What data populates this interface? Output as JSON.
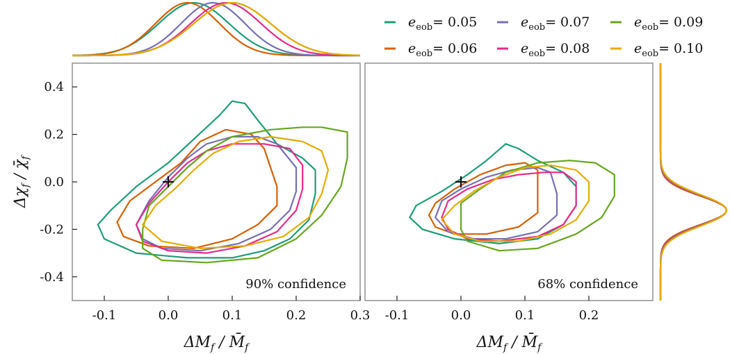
{
  "chart_data": {
    "type": "contour",
    "description_units": "data units",
    "series": [
      {
        "name": "e_eob = 0.05",
        "value": 0.05,
        "color": "#1b9e77"
      },
      {
        "name": "e_eob = 0.06",
        "value": 0.06,
        "color": "#d95f02"
      },
      {
        "name": "e_eob = 0.07",
        "value": 0.07,
        "color": "#7570b3"
      },
      {
        "name": "e_eob = 0.08",
        "value": 0.08,
        "color": "#e7298a"
      },
      {
        "name": "e_eob = 0.09",
        "value": 0.09,
        "color": "#66a61e"
      },
      {
        "name": "e_eob = 0.10",
        "value": 0.1,
        "color": "#e6ab02"
      }
    ],
    "legend": {
      "placement": "top-right",
      "symbol": "e",
      "subscript": "eob",
      "entries": [
        "= 0.05",
        "= 0.06",
        "= 0.07",
        "= 0.08",
        "= 0.09",
        "= 0.10"
      ]
    },
    "panels": [
      {
        "name": "90-confidence",
        "annotation": "90% confidence",
        "xlim": [
          -0.15,
          0.3
        ],
        "ylim": [
          -0.5,
          0.5
        ],
        "xticks": [
          -0.1,
          0.0,
          0.1,
          0.2,
          0.3
        ],
        "xtick_labels": [
          "-0.1",
          "0.0",
          "0.1",
          "0.2",
          "0.3"
        ],
        "yticks": [
          -0.4,
          -0.2,
          0.0,
          0.2,
          0.4
        ],
        "ytick_labels": [
          "-0.4",
          "-0.2",
          "0.0",
          "0.2",
          "0.4"
        ],
        "marker": [
          0.0,
          0.0
        ],
        "contours": [
          [
            [
              -0.11,
              -0.18
            ],
            [
              -0.09,
              -0.12
            ],
            [
              -0.05,
              -0.02
            ],
            [
              0.0,
              0.08
            ],
            [
              0.04,
              0.18
            ],
            [
              0.08,
              0.28
            ],
            [
              0.1,
              0.34
            ],
            [
              0.12,
              0.33
            ],
            [
              0.14,
              0.26
            ],
            [
              0.17,
              0.16
            ],
            [
              0.21,
              0.1
            ],
            [
              0.23,
              0.05
            ],
            [
              0.23,
              -0.05
            ],
            [
              0.22,
              -0.16
            ],
            [
              0.19,
              -0.24
            ],
            [
              0.15,
              -0.29
            ],
            [
              0.1,
              -0.32
            ],
            [
              0.03,
              -0.32
            ],
            [
              -0.05,
              -0.3
            ],
            [
              -0.1,
              -0.24
            ],
            [
              -0.11,
              -0.18
            ]
          ],
          [
            [
              -0.08,
              -0.17
            ],
            [
              -0.06,
              -0.08
            ],
            [
              -0.02,
              0.0
            ],
            [
              0.02,
              0.08
            ],
            [
              0.05,
              0.17
            ],
            [
              0.09,
              0.22
            ],
            [
              0.13,
              0.2
            ],
            [
              0.15,
              0.14
            ],
            [
              0.16,
              0.06
            ],
            [
              0.17,
              -0.02
            ],
            [
              0.17,
              -0.1
            ],
            [
              0.14,
              -0.18
            ],
            [
              0.1,
              -0.24
            ],
            [
              0.04,
              -0.28
            ],
            [
              -0.03,
              -0.27
            ],
            [
              -0.07,
              -0.23
            ],
            [
              -0.08,
              -0.17
            ]
          ],
          [
            [
              -0.05,
              -0.18
            ],
            [
              -0.03,
              -0.08
            ],
            [
              0.0,
              0.02
            ],
            [
              0.03,
              0.1
            ],
            [
              0.06,
              0.16
            ],
            [
              0.1,
              0.19
            ],
            [
              0.14,
              0.19
            ],
            [
              0.17,
              0.16
            ],
            [
              0.2,
              0.06
            ],
            [
              0.2,
              -0.04
            ],
            [
              0.19,
              -0.12
            ],
            [
              0.16,
              -0.2
            ],
            [
              0.11,
              -0.26
            ],
            [
              0.05,
              -0.29
            ],
            [
              -0.01,
              -0.28
            ],
            [
              -0.04,
              -0.24
            ],
            [
              -0.05,
              -0.18
            ]
          ],
          [
            [
              -0.05,
              -0.18
            ],
            [
              -0.03,
              -0.09
            ],
            [
              0.0,
              0.0
            ],
            [
              0.03,
              0.08
            ],
            [
              0.06,
              0.13
            ],
            [
              0.1,
              0.16
            ],
            [
              0.15,
              0.16
            ],
            [
              0.19,
              0.14
            ],
            [
              0.21,
              0.07
            ],
            [
              0.21,
              -0.03
            ],
            [
              0.2,
              -0.12
            ],
            [
              0.17,
              -0.21
            ],
            [
              0.12,
              -0.27
            ],
            [
              0.06,
              -0.3
            ],
            [
              0.0,
              -0.29
            ],
            [
              -0.04,
              -0.25
            ],
            [
              -0.05,
              -0.18
            ]
          ],
          [
            [
              -0.04,
              -0.2
            ],
            [
              -0.03,
              -0.1
            ],
            [
              0.0,
              -0.02
            ],
            [
              0.03,
              0.06
            ],
            [
              0.06,
              0.13
            ],
            [
              0.1,
              0.19
            ],
            [
              0.16,
              0.22
            ],
            [
              0.21,
              0.23
            ],
            [
              0.24,
              0.23
            ],
            [
              0.28,
              0.21
            ],
            [
              0.28,
              0.1
            ],
            [
              0.27,
              -0.02
            ],
            [
              0.24,
              -0.14
            ],
            [
              0.2,
              -0.24
            ],
            [
              0.14,
              -0.32
            ],
            [
              0.06,
              -0.34
            ],
            [
              -0.01,
              -0.33
            ],
            [
              -0.04,
              -0.28
            ],
            [
              -0.04,
              -0.2
            ]
          ],
          [
            [
              -0.04,
              -0.18
            ],
            [
              -0.02,
              -0.1
            ],
            [
              0.01,
              -0.03
            ],
            [
              0.04,
              0.05
            ],
            [
              0.07,
              0.12
            ],
            [
              0.11,
              0.17
            ],
            [
              0.16,
              0.19
            ],
            [
              0.21,
              0.17
            ],
            [
              0.24,
              0.13
            ],
            [
              0.25,
              0.05
            ],
            [
              0.24,
              -0.05
            ],
            [
              0.22,
              -0.15
            ],
            [
              0.18,
              -0.23
            ],
            [
              0.12,
              -0.27
            ],
            [
              0.05,
              -0.28
            ],
            [
              -0.01,
              -0.25
            ],
            [
              -0.04,
              -0.18
            ]
          ]
        ]
      },
      {
        "name": "68-confidence",
        "annotation": "68% confidence",
        "xlim": [
          -0.15,
          0.3
        ],
        "ylim": [
          -0.5,
          0.5
        ],
        "xticks": [
          -0.1,
          0.0,
          0.1,
          0.2
        ],
        "xtick_labels": [
          "-0.1",
          "0.0",
          "0.1",
          "0.2"
        ],
        "yticks": [],
        "ytick_labels": [],
        "marker": [
          0.0,
          0.0
        ],
        "contours": [
          [
            [
              -0.08,
              -0.15
            ],
            [
              -0.07,
              -0.1
            ],
            [
              -0.03,
              -0.04
            ],
            [
              0.01,
              0.03
            ],
            [
              0.04,
              0.09
            ],
            [
              0.07,
              0.16
            ],
            [
              0.09,
              0.14
            ],
            [
              0.12,
              0.09
            ],
            [
              0.16,
              0.04
            ],
            [
              0.18,
              -0.02
            ],
            [
              0.18,
              -0.1
            ],
            [
              0.16,
              -0.18
            ],
            [
              0.12,
              -0.24
            ],
            [
              0.06,
              -0.26
            ],
            [
              -0.01,
              -0.24
            ],
            [
              -0.06,
              -0.2
            ],
            [
              -0.08,
              -0.15
            ]
          ],
          [
            [
              -0.05,
              -0.14
            ],
            [
              -0.04,
              -0.09
            ],
            [
              -0.01,
              -0.03
            ],
            [
              0.03,
              0.03
            ],
            [
              0.07,
              0.07
            ],
            [
              0.1,
              0.08
            ],
            [
              0.12,
              0.05
            ],
            [
              0.12,
              -0.05
            ],
            [
              0.12,
              -0.13
            ],
            [
              0.09,
              -0.19
            ],
            [
              0.04,
              -0.22
            ],
            [
              -0.01,
              -0.22
            ],
            [
              -0.04,
              -0.19
            ],
            [
              -0.05,
              -0.14
            ]
          ],
          [
            [
              -0.04,
              -0.15
            ],
            [
              -0.03,
              -0.08
            ],
            [
              0.0,
              -0.03
            ],
            [
              0.04,
              0.02
            ],
            [
              0.08,
              0.05
            ],
            [
              0.12,
              0.06
            ],
            [
              0.14,
              0.04
            ],
            [
              0.15,
              -0.05
            ],
            [
              0.15,
              -0.14
            ],
            [
              0.12,
              -0.21
            ],
            [
              0.07,
              -0.24
            ],
            [
              0.02,
              -0.24
            ],
            [
              -0.02,
              -0.21
            ],
            [
              -0.04,
              -0.15
            ]
          ],
          [
            [
              -0.03,
              -0.15
            ],
            [
              -0.02,
              -0.08
            ],
            [
              0.01,
              -0.03
            ],
            [
              0.05,
              0.01
            ],
            [
              0.09,
              0.03
            ],
            [
              0.13,
              0.04
            ],
            [
              0.16,
              0.04
            ],
            [
              0.18,
              0.0
            ],
            [
              0.18,
              -0.1
            ],
            [
              0.16,
              -0.18
            ],
            [
              0.12,
              -0.23
            ],
            [
              0.06,
              -0.25
            ],
            [
              0.01,
              -0.24
            ],
            [
              -0.02,
              -0.2
            ],
            [
              -0.03,
              -0.15
            ]
          ],
          [
            [
              -0.0,
              -0.15
            ],
            [
              0.0,
              -0.09
            ],
            [
              0.03,
              -0.03
            ],
            [
              0.07,
              0.04
            ],
            [
              0.12,
              0.08
            ],
            [
              0.17,
              0.09
            ],
            [
              0.21,
              0.08
            ],
            [
              0.24,
              0.03
            ],
            [
              0.24,
              -0.06
            ],
            [
              0.22,
              -0.15
            ],
            [
              0.18,
              -0.22
            ],
            [
              0.12,
              -0.28
            ],
            [
              0.06,
              -0.29
            ],
            [
              0.01,
              -0.25
            ],
            [
              -0.0,
              -0.2
            ],
            [
              -0.0,
              -0.15
            ]
          ],
          [
            [
              -0.03,
              -0.16
            ],
            [
              -0.01,
              -0.1
            ],
            [
              0.02,
              -0.04
            ],
            [
              0.06,
              0.02
            ],
            [
              0.1,
              0.06
            ],
            [
              0.14,
              0.07
            ],
            [
              0.18,
              0.05
            ],
            [
              0.2,
              0.0
            ],
            [
              0.2,
              -0.08
            ],
            [
              0.18,
              -0.16
            ],
            [
              0.14,
              -0.22
            ],
            [
              0.09,
              -0.25
            ],
            [
              0.03,
              -0.25
            ],
            [
              -0.01,
              -0.22
            ],
            [
              -0.03,
              -0.16
            ]
          ]
        ]
      }
    ],
    "marginals": {
      "top": {
        "axis": "x",
        "means": [
          0.04,
          0.03,
          0.07,
          0.09,
          0.1,
          0.1
        ],
        "sigmas": [
          0.055,
          0.05,
          0.05,
          0.055,
          0.06,
          0.06
        ]
      },
      "right": {
        "axis": "y",
        "means": [
          -0.12,
          -0.12,
          -0.12,
          -0.12,
          -0.12,
          -0.12
        ],
        "sigmas": [
          0.065,
          0.06,
          0.062,
          0.063,
          0.065,
          0.066
        ]
      }
    },
    "xlabel": "ΔM_f / M̄_f",
    "ylabel": "Δχ_f / χ̄_f",
    "labels": {
      "xlabel_main": "ΔM",
      "xlabel_sub": "f",
      "xlabel_den": "M̄",
      "ylabel_main": "Δχ",
      "ylabel_sub": "f",
      "ylabel_den": "χ̄"
    }
  }
}
